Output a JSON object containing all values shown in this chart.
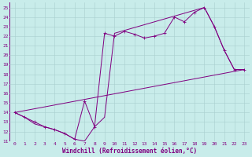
{
  "xlabel": "Windchill (Refroidissement éolien,°C)",
  "bg_color": "#c8ecea",
  "line_color": "#800080",
  "grid_color": "#a8cece",
  "xlim": [
    -0.5,
    23.5
  ],
  "ylim": [
    11,
    25.5
  ],
  "xticks": [
    0,
    1,
    2,
    3,
    4,
    5,
    6,
    7,
    8,
    9,
    10,
    11,
    12,
    13,
    14,
    15,
    16,
    17,
    18,
    19,
    20,
    21,
    22,
    23
  ],
  "yticks": [
    11,
    12,
    13,
    14,
    15,
    16,
    17,
    18,
    19,
    20,
    21,
    22,
    23,
    24,
    25
  ],
  "series1_x": [
    0,
    1,
    2,
    3,
    4,
    5,
    6,
    7,
    8,
    9,
    10,
    11,
    12,
    13,
    14,
    15,
    16,
    17,
    18,
    19,
    20,
    21,
    22,
    23
  ],
  "series1_y": [
    14.0,
    13.5,
    13.0,
    12.5,
    12.2,
    11.8,
    11.2,
    15.2,
    12.5,
    22.3,
    22.0,
    22.5,
    22.2,
    21.8,
    22.0,
    22.3,
    24.0,
    23.5,
    24.5,
    25.0,
    23.0,
    20.5,
    18.5,
    18.5
  ],
  "series2_x": [
    0,
    23
  ],
  "series2_y": [
    14.0,
    18.5
  ],
  "series3_x": [
    0,
    1,
    2,
    3,
    4,
    5,
    6,
    7,
    8,
    9,
    10,
    19,
    20,
    21,
    22,
    23
  ],
  "series3_y": [
    14.0,
    13.5,
    12.8,
    12.5,
    12.2,
    11.8,
    11.2,
    11.0,
    12.5,
    13.5,
    22.3,
    25.0,
    23.0,
    20.5,
    18.5,
    18.5
  ],
  "marker_style": "+",
  "linewidth": 0.7,
  "markersize": 3.0,
  "tick_fontsize": 4.5,
  "xlabel_fontsize": 5.5
}
